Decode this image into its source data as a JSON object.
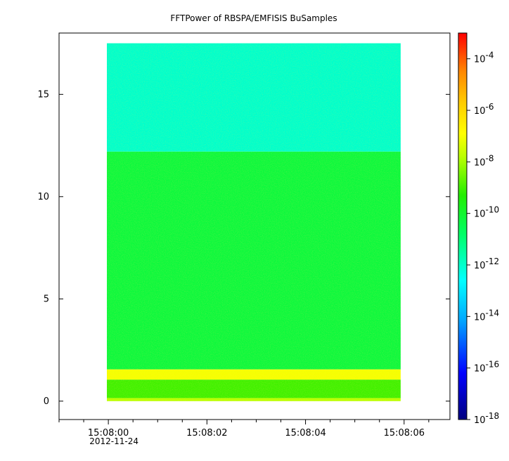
{
  "chart_data": {
    "type": "heatmap",
    "title": "FFTPower of RBSPA/EMFISIS  BuSamples",
    "xlabel": "",
    "ylabel": "",
    "x_ticks": [
      {
        "label": "15:08:00",
        "sub": "2012-11-24",
        "t": 0
      },
      {
        "label": "15:08:02",
        "sub": "",
        "t": 2
      },
      {
        "label": "15:08:04",
        "sub": "",
        "t": 4
      },
      {
        "label": "15:08:06",
        "sub": "",
        "t": 6
      }
    ],
    "x_minor_ticks": [
      -1,
      -0.5,
      0.5,
      1,
      1.5,
      2.5,
      3,
      3.5,
      4.5,
      5,
      5.5,
      6.5
    ],
    "xlim": [
      -1.0,
      6.93
    ],
    "data_x_range": [
      -0.03,
      5.93
    ],
    "ylim": [
      -0.9,
      18.0
    ],
    "y_ticks": [
      0,
      5,
      10,
      15
    ],
    "data_y_range": [
      0,
      17.5
    ],
    "colorbar": {
      "scale": "log",
      "range": [
        1e-18,
        0.001
      ],
      "ticks": [
        {
          "base": "10",
          "exp": "-4",
          "value": -4
        },
        {
          "base": "10",
          "exp": "-6",
          "value": -6
        },
        {
          "base": "10",
          "exp": "-8",
          "value": -8
        },
        {
          "base": "10",
          "exp": "-10",
          "value": -10
        },
        {
          "base": "10",
          "exp": "-12",
          "value": -12
        },
        {
          "base": "10",
          "exp": "-14",
          "value": -14
        },
        {
          "base": "10",
          "exp": "-16",
          "value": -16
        },
        {
          "base": "10",
          "exp": "-18",
          "value": -18
        }
      ]
    },
    "bands": [
      {
        "y_range": [
          12.2,
          17.5
        ],
        "log10_power": -12.0
      },
      {
        "y_range": [
          1.55,
          12.2
        ],
        "log10_power": -10.2
      },
      {
        "y_range": [
          1.05,
          1.55
        ],
        "log10_power": -7.0
      },
      {
        "y_range": [
          0.15,
          1.05
        ],
        "log10_power": -9.0
      },
      {
        "y_range": [
          0.0,
          0.15
        ],
        "log10_power": -7.8
      }
    ]
  }
}
